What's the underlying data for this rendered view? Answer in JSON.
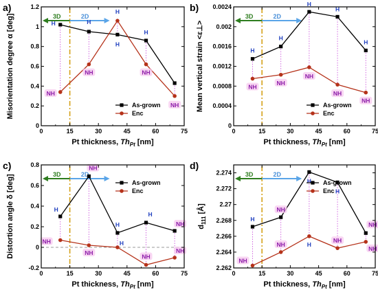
{
  "colors": {
    "as_grown": "#000000",
    "enc": "#b5321a",
    "h_label": "#1f3fbf",
    "nh_label": "#8b1aa8",
    "nh_bg": "#f7c9ef",
    "arrow_3d": "#2e7d1f",
    "arrow_2d": "#5aa5e8",
    "threshold_line": "#d4a017",
    "guide_line": "#cc55dd"
  },
  "chart_data": [
    {
      "panel": "a)",
      "type": "line",
      "ylabel": "Misorientation degree α [deg]",
      "xlabel_main": "Pt thickness, ",
      "xlabel_var": "Th",
      "xlabel_sub": "Pt",
      "xlabel_unit": " [nm]",
      "xlim": [
        0,
        75
      ],
      "ylim": [
        0,
        1.2
      ],
      "xticks": [
        "0",
        "15",
        "30",
        "45",
        "60",
        "75"
      ],
      "yticks": [
        "0",
        "0.2",
        "0.4",
        "0.6",
        "0.8",
        "1",
        "1.2"
      ],
      "yticks_values": [
        0,
        0.2,
        0.4,
        0.6,
        0.8,
        1.0,
        1.2
      ],
      "region_labels": {
        "left": "3D",
        "right": "2D"
      },
      "threshold_x": 15,
      "legend": {
        "placement": "bottom-right"
      },
      "series": [
        {
          "name": "As-grown",
          "x": [
            10,
            25,
            40,
            55,
            70
          ],
          "y": [
            1.02,
            0.95,
            0.92,
            0.86,
            0.43
          ]
        },
        {
          "name": "Enc",
          "x": [
            10,
            25,
            40,
            55,
            70
          ],
          "y": [
            0.34,
            0.62,
            1.06,
            0.62,
            0.3
          ]
        }
      ],
      "annotations": [
        {
          "text": "H",
          "x": 10,
          "y": 1.02,
          "kind": "H",
          "dx": -10,
          "dy": -2
        },
        {
          "text": "NH",
          "x": 10,
          "y": 0.34,
          "kind": "NH",
          "dx": -14,
          "dy": 2
        },
        {
          "text": "H",
          "x": 25,
          "y": 0.95,
          "kind": "H",
          "dx": 0,
          "dy": -14
        },
        {
          "text": "NH",
          "x": 25,
          "y": 0.62,
          "kind": "NH",
          "dx": 0,
          "dy": 12
        },
        {
          "text": "H",
          "x": 40,
          "y": 1.06,
          "kind": "H",
          "dx": 0,
          "dy": -13
        },
        {
          "text": "H",
          "x": 40,
          "y": 0.92,
          "kind": "H",
          "dx": 0,
          "dy": 14
        },
        {
          "text": "H",
          "x": 55,
          "y": 0.86,
          "kind": "H",
          "dx": 0,
          "dy": -12
        },
        {
          "text": "NH",
          "x": 55,
          "y": 0.62,
          "kind": "NH",
          "dx": 0,
          "dy": 12
        },
        {
          "text": "NH",
          "x": 70,
          "y": 0.3,
          "kind": "NH",
          "dx": 0,
          "dy": 13
        }
      ]
    },
    {
      "panel": "b)",
      "type": "line",
      "ylabel": "Mean vertical strain <ε⊥>",
      "xlabel_main": "Pt thickness, ",
      "xlabel_var": "Th",
      "xlabel_sub": "Pt",
      "xlabel_unit": " [nm]",
      "xlim": [
        0,
        75
      ],
      "ylim": [
        0,
        0.0024
      ],
      "xticks": [
        "0",
        "15",
        "30",
        "45",
        "60",
        "75"
      ],
      "yticks": [
        "0",
        "0.0004",
        "0.0008",
        "0.0012",
        "0.0016",
        "0.002",
        "0.0024"
      ],
      "yticks_values": [
        0,
        0.0004,
        0.0008,
        0.0012,
        0.0016,
        0.002,
        0.0024
      ],
      "region_labels": {
        "left": "3D",
        "right": "2D"
      },
      "threshold_x": 15,
      "legend": {
        "placement": "bottom-right"
      },
      "series": [
        {
          "name": "As-grown",
          "x": [
            10,
            25,
            40,
            55,
            70
          ],
          "y": [
            0.00135,
            0.0016,
            0.0023,
            0.0022,
            0.00152
          ]
        },
        {
          "name": "Enc",
          "x": [
            10,
            25,
            40,
            55,
            70
          ],
          "y": [
            0.00095,
            0.00103,
            0.00118,
            0.00083,
            0.00067
          ]
        }
      ],
      "annotations": [
        {
          "text": "H",
          "x": 10,
          "y": 0.00135,
          "kind": "H",
          "dx": 0,
          "dy": -12
        },
        {
          "text": "NH",
          "x": 10,
          "y": 0.00095,
          "kind": "NH",
          "dx": 0,
          "dy": 12
        },
        {
          "text": "H",
          "x": 25,
          "y": 0.0016,
          "kind": "H",
          "dx": 0,
          "dy": -12
        },
        {
          "text": "NH",
          "x": 25,
          "y": 0.00103,
          "kind": "NH",
          "dx": 0,
          "dy": 12
        },
        {
          "text": "H",
          "x": 40,
          "y": 0.0023,
          "kind": "H",
          "dx": 0,
          "dy": -11
        },
        {
          "text": "NH",
          "x": 40,
          "y": 0.00118,
          "kind": "NH",
          "dx": 0,
          "dy": 13
        },
        {
          "text": "H",
          "x": 55,
          "y": 0.0022,
          "kind": "H",
          "dx": 0,
          "dy": -11
        },
        {
          "text": "NH",
          "x": 55,
          "y": 0.00083,
          "kind": "NH",
          "dx": 0,
          "dy": 13
        },
        {
          "text": "H",
          "x": 70,
          "y": 0.00152,
          "kind": "H",
          "dx": 0,
          "dy": -12
        },
        {
          "text": "NH",
          "x": 70,
          "y": 0.00067,
          "kind": "NH",
          "dx": 0,
          "dy": 12
        }
      ]
    },
    {
      "panel": "c)",
      "type": "line",
      "ylabel": "Distortion angle δ [deg]",
      "xlabel_main": "Pt thickness, ",
      "xlabel_var": "Th",
      "xlabel_sub": "Pt",
      "xlabel_unit": " [nm]",
      "xlim": [
        0,
        75
      ],
      "ylim": [
        -0.2,
        0.8
      ],
      "xticks": [
        "0",
        "15",
        "30",
        "45",
        "60",
        "75"
      ],
      "yticks": [
        "-0.2",
        "0",
        "0.2",
        "0.4",
        "0.6",
        "0.8"
      ],
      "yticks_values": [
        -0.2,
        0,
        0.2,
        0.4,
        0.6,
        0.8
      ],
      "zero_line": true,
      "region_labels": {
        "left": "3D",
        "right": "2D"
      },
      "threshold_x": 15,
      "legend": {
        "placement": "top-right"
      },
      "series": [
        {
          "name": "As-grown",
          "x": [
            10,
            25,
            40,
            55,
            70
          ],
          "y": [
            0.3,
            0.69,
            0.14,
            0.24,
            0.16
          ]
        },
        {
          "name": "Enc",
          "x": [
            10,
            25,
            40,
            55,
            70
          ],
          "y": [
            0.07,
            0.02,
            0.0,
            -0.17,
            -0.1
          ]
        }
      ],
      "annotations": [
        {
          "text": "H",
          "x": 10,
          "y": 0.3,
          "kind": "H",
          "dx": -6,
          "dy": -10
        },
        {
          "text": "NH",
          "x": 10,
          "y": 0.07,
          "kind": "NH",
          "dx": -20,
          "dy": 2
        },
        {
          "text": "NH",
          "x": 25,
          "y": 0.69,
          "kind": "NH",
          "dx": 6,
          "dy": -12
        },
        {
          "text": "NH",
          "x": 25,
          "y": 0.02,
          "kind": "NH",
          "dx": 0,
          "dy": 11
        },
        {
          "text": "H",
          "x": 40,
          "y": 0.14,
          "kind": "H",
          "dx": 0,
          "dy": -12
        },
        {
          "text": "H",
          "x": 40,
          "y": 0.0,
          "kind": "H",
          "dx": 6,
          "dy": -6
        },
        {
          "text": "H",
          "x": 55,
          "y": 0.24,
          "kind": "H",
          "dx": 6,
          "dy": -12
        },
        {
          "text": "NH",
          "x": 55,
          "y": -0.17,
          "kind": "NH",
          "dx": 0,
          "dy": -12
        },
        {
          "text": "NH",
          "x": 70,
          "y": 0.16,
          "kind": "NH",
          "dx": 8,
          "dy": -10
        },
        {
          "text": "NH",
          "x": 70,
          "y": -0.1,
          "kind": "NH",
          "dx": 8,
          "dy": -10
        }
      ]
    },
    {
      "panel": "d)",
      "type": "line",
      "ylabel": "d111 [Å]",
      "ylabel_main": "d",
      "ylabel_sub": "111",
      "ylabel_unit": " [Å]",
      "xlabel_main": "Pt thickness, ",
      "xlabel_var": "Th",
      "xlabel_sub": "Pt",
      "xlabel_unit": " [nm]",
      "xlim": [
        0,
        75
      ],
      "ylim": [
        2.262,
        2.275
      ],
      "xticks": [
        "0",
        "15",
        "30",
        "45",
        "60",
        "75"
      ],
      "yticks": [
        "2.262",
        "2.264",
        "2.266",
        "2.268",
        "2.27",
        "2.272",
        "2.274"
      ],
      "yticks_values": [
        2.262,
        2.264,
        2.266,
        2.268,
        2.27,
        2.272,
        2.274
      ],
      "region_labels": {
        "left": "3D",
        "right": "2D"
      },
      "threshold_x": 15,
      "legend": {
        "placement": "top-right"
      },
      "series": [
        {
          "name": "As-grown",
          "x": [
            10,
            25,
            40,
            55,
            70
          ],
          "y": [
            2.2672,
            2.2684,
            2.2741,
            2.2728,
            2.2664
          ]
        },
        {
          "name": "Enc",
          "x": [
            10,
            25,
            40,
            55,
            70
          ],
          "y": [
            2.2623,
            2.264,
            2.266,
            2.2645,
            2.2653
          ]
        }
      ],
      "annotations": [
        {
          "text": "H",
          "x": 10,
          "y": 2.2672,
          "kind": "H",
          "dx": 0,
          "dy": -11
        },
        {
          "text": "NH",
          "x": 10,
          "y": 2.2623,
          "kind": "NH",
          "dx": -14,
          "dy": -7
        },
        {
          "text": "NH",
          "x": 25,
          "y": 2.2684,
          "kind": "NH",
          "dx": 0,
          "dy": -11
        },
        {
          "text": "NH",
          "x": 25,
          "y": 2.264,
          "kind": "NH",
          "dx": 0,
          "dy": -11
        },
        {
          "text": "H",
          "x": 40,
          "y": 2.2741,
          "kind": "H",
          "dx": 0,
          "dy": 13
        },
        {
          "text": "H",
          "x": 40,
          "y": 2.266,
          "kind": "H",
          "dx": 0,
          "dy": 12
        },
        {
          "text": "H",
          "x": 55,
          "y": 2.2728,
          "kind": "H",
          "dx": 0,
          "dy": 13
        },
        {
          "text": "NH",
          "x": 55,
          "y": 2.2645,
          "kind": "NH",
          "dx": 0,
          "dy": -11
        },
        {
          "text": "NH",
          "x": 70,
          "y": 2.2664,
          "kind": "NH",
          "dx": 10,
          "dy": -12
        },
        {
          "text": "NH",
          "x": 70,
          "y": 2.2653,
          "kind": "NH",
          "dx": 10,
          "dy": 10
        }
      ]
    }
  ]
}
